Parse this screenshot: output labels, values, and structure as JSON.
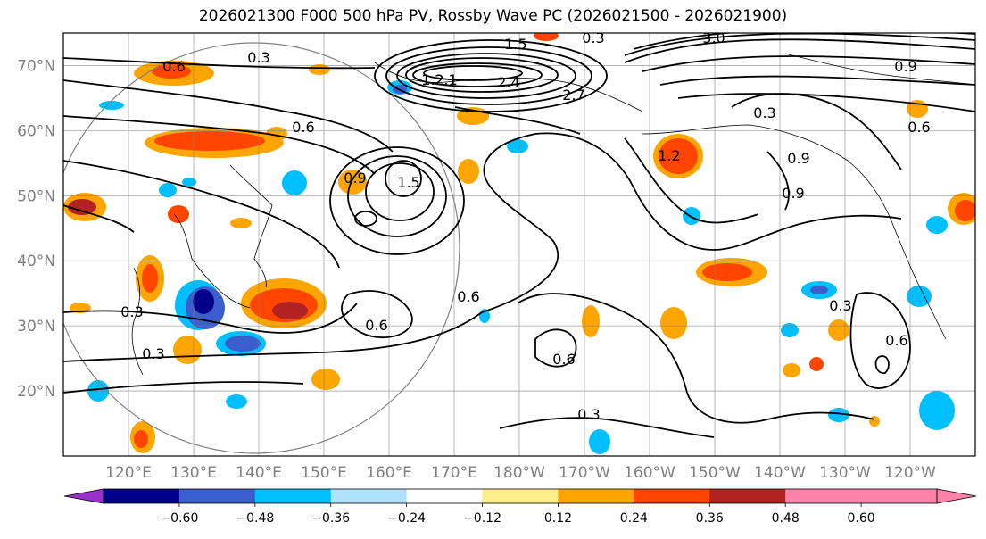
{
  "title": "2026021300 F000 500 hPa PV, Rossby Wave PC (2026021500 - 2026021900)",
  "latitude_labels": [
    "70°N",
    "60°N",
    "50°N",
    "40°N",
    "30°N",
    "20°N"
  ],
  "longitude_labels": [
    "120°E",
    "130°E",
    "140°E",
    "150°E",
    "160°E",
    "170°E",
    "180°W",
    "170°W",
    "160°W",
    "150°W",
    "140°W",
    "130°W",
    "120°W"
  ],
  "contour_labels": [
    "0.3",
    "0.6",
    "0.9",
    "1.2",
    "1.5",
    "2.1",
    "2.4",
    "2.7",
    "3.0",
    "0.3",
    "0.6",
    "0.9",
    "1.2",
    "1.5",
    "0.3",
    "0.6",
    "0.6",
    "0.3",
    "0.9",
    "0.9",
    "0.3",
    "0.6",
    "0.6",
    "0.3",
    "0.3",
    "0.6"
  ],
  "colorbar": {
    "ticks": [
      "−0.60",
      "−0.48",
      "−0.36",
      "−0.24",
      "−0.12",
      "0.12",
      "0.24",
      "0.36",
      "0.48",
      "0.60"
    ],
    "colors": [
      "#9932cc",
      "#00008b",
      "#3a5fcd",
      "#00bfff",
      "#b0e2ff",
      "#ffffff",
      "#ffec8b",
      "#ffa500",
      "#ff4500",
      "#b22222",
      "#ff82ab",
      "#ff82ab"
    ]
  },
  "chart_data": {
    "type": "map",
    "title": "2026021300 F000 500 hPa PV, Rossby Wave PC (2026021500 - 2026021900)",
    "lat_range": [
      10,
      75
    ],
    "lon_range": [
      110,
      250
    ],
    "filled_field": "Rossby Wave PC anomaly",
    "filled_levels": [
      -0.6,
      -0.48,
      -0.36,
      -0.24,
      -0.12,
      0.12,
      0.24,
      0.36,
      0.48,
      0.6
    ],
    "contour_field": "500 hPa PV (PVU)",
    "contour_levels": [
      0.3,
      0.6,
      0.9,
      1.2,
      1.5,
      1.8,
      2.1,
      2.4,
      2.7,
      3.0
    ],
    "grid": true
  }
}
